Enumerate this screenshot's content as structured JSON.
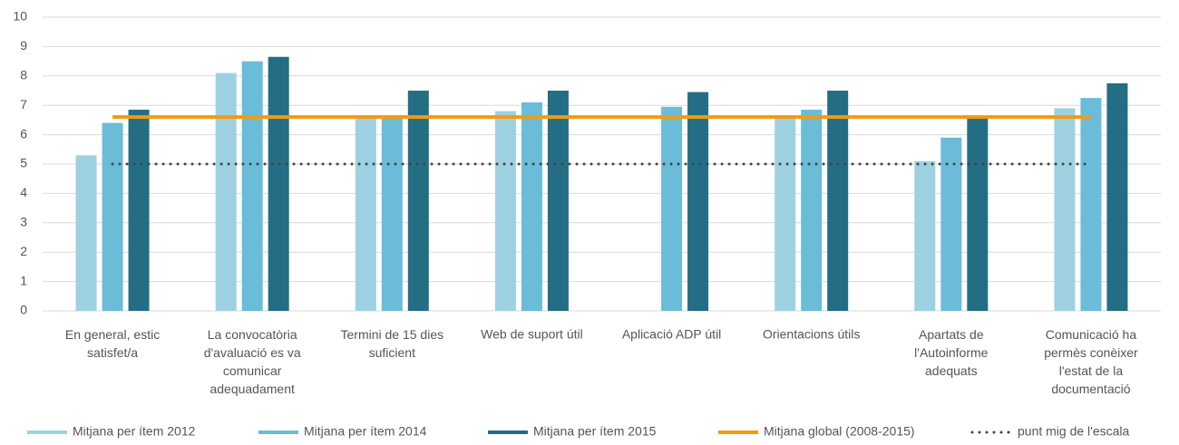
{
  "chart_data": {
    "type": "bar",
    "categories": [
      "En general, estic\nsatisfet/a",
      "La convocatòria\nd'avaluació es va\ncomunicar\nadequadament",
      "Termini de 15 dies\nsuficient",
      "Web de suport útil",
      "Aplicació ADP útil",
      "Orientacions útils",
      "Apartats de\nl'Autoinforme\nadequats",
      "Comunicació ha\npermès conèixer\nl'estat de la\ndocumentació"
    ],
    "series": [
      {
        "name": "Mitjana per ítem 2012",
        "type": "bar",
        "color": "#9dd1e2",
        "values": [
          5.3,
          8.1,
          6.6,
          6.8,
          null,
          6.6,
          5.1,
          6.9
        ]
      },
      {
        "name": "Mitjana per ítem 2014",
        "type": "bar",
        "color": "#6bbcd8",
        "values": [
          6.4,
          8.5,
          6.65,
          7.1,
          6.95,
          6.85,
          5.9,
          7.25
        ]
      },
      {
        "name": "Mitjana per ítem 2015",
        "type": "bar",
        "color": "#236e84",
        "values": [
          6.85,
          8.65,
          7.5,
          7.5,
          7.45,
          7.5,
          6.6,
          7.75
        ]
      },
      {
        "name": "Mitjana global (2008-2015)",
        "type": "line",
        "style": "solid",
        "color": "#f59a0c",
        "values": [
          6.6,
          6.6,
          6.6,
          6.6,
          6.6,
          6.6,
          6.6,
          6.6
        ]
      },
      {
        "name": "punt mig de l'escala",
        "type": "line",
        "style": "dotted",
        "color": "#444444",
        "values": [
          5,
          5,
          5,
          5,
          5,
          5,
          5,
          5
        ]
      }
    ],
    "ylim": [
      0,
      10
    ],
    "yticks": [
      0,
      1,
      2,
      3,
      4,
      5,
      6,
      7,
      8,
      9,
      10
    ],
    "grid": true,
    "legend": "bottom"
  }
}
